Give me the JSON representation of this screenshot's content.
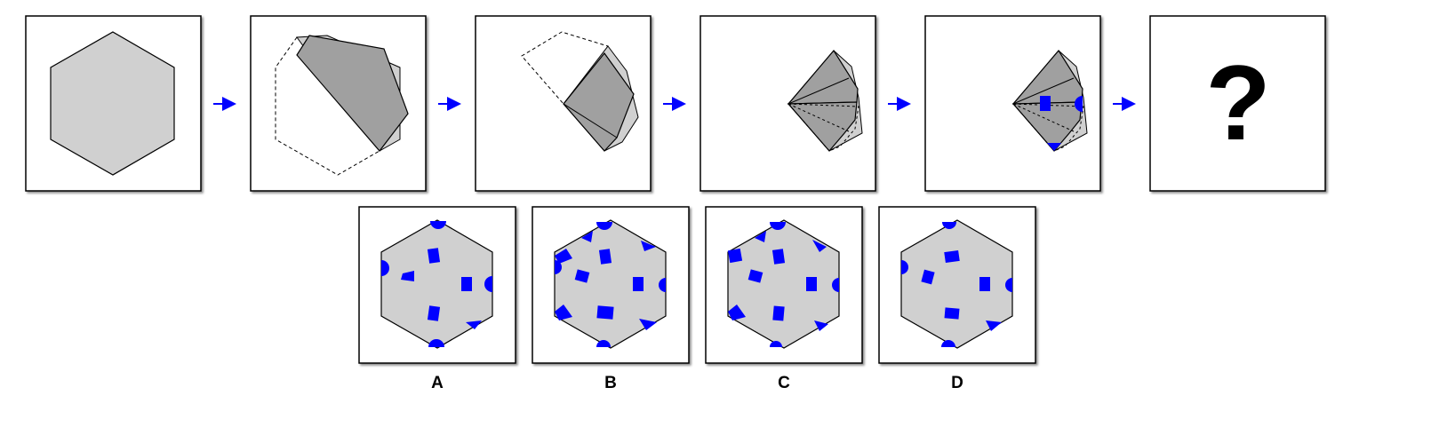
{
  "sequence": {
    "steps": [
      {
        "name": "unfolded-hexagon"
      },
      {
        "name": "fold-1"
      },
      {
        "name": "fold-2"
      },
      {
        "name": "fold-3"
      },
      {
        "name": "punched"
      },
      {
        "name": "question",
        "text": "?"
      }
    ],
    "arrow_color": "#0000ff"
  },
  "options": [
    {
      "label": "A"
    },
    {
      "label": "B"
    },
    {
      "label": "C"
    },
    {
      "label": "D"
    }
  ],
  "colors": {
    "paper": "#d0d0d0",
    "folded": "#a0a0a0",
    "hole": "#0000ff",
    "stroke": "#000000"
  }
}
